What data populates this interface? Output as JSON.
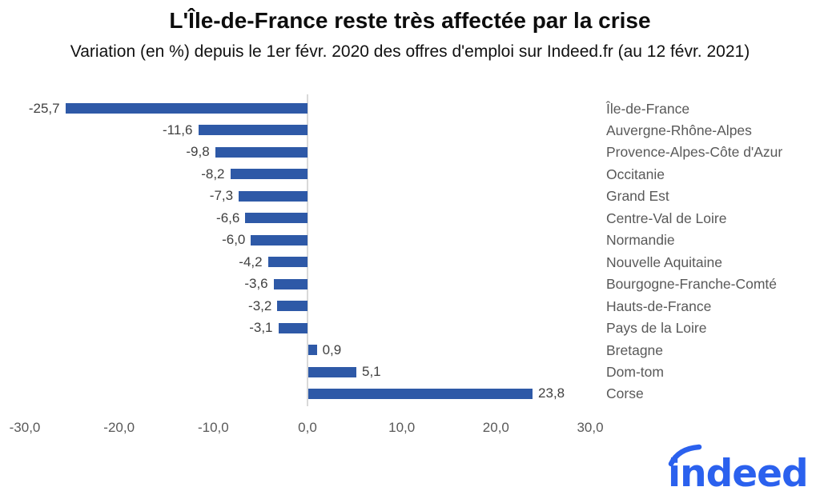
{
  "header": {
    "title": "L'Île-de-France reste très affectée par la crise",
    "subtitle": "Variation (en %) depuis le 1er févr. 2020 des offres d'emploi sur Indeed.fr (au 12 févr. 2021)"
  },
  "chart_data": {
    "type": "bar",
    "orientation": "horizontal",
    "title": "L'Île-de-France reste très affectée par la crise",
    "subtitle": "Variation (en %) depuis le 1er févr. 2020 des offres d'emploi sur Indeed.fr (au 12 févr. 2021)",
    "categories": [
      "Île-de-France",
      "Auvergne-Rhône-Alpes",
      "Provence-Alpes-Côte d'Azur",
      "Occitanie",
      "Grand Est",
      "Centre-Val de Loire",
      "Normandie",
      "Nouvelle Aquitaine",
      "Bourgogne-Franche-Comté",
      "Hauts-de-France",
      "Pays de la Loire",
      "Bretagne",
      "Dom-tom",
      "Corse"
    ],
    "values": [
      -25.7,
      -11.6,
      -9.8,
      -8.2,
      -7.3,
      -6.6,
      -6.0,
      -4.2,
      -3.6,
      -3.2,
      -3.1,
      0.9,
      5.1,
      23.8
    ],
    "value_labels": [
      "-25,7",
      "-11,6",
      "-9,8",
      "-8,2",
      "-7,3",
      "-6,6",
      "-6,0",
      "-4,2",
      "-3,6",
      "-3,2",
      "-3,1",
      "0,9",
      "5,1",
      "23,8"
    ],
    "xlabel": "",
    "ylabel": "",
    "xlim": [
      -30,
      30
    ],
    "x_ticks": [
      -30,
      -20,
      -10,
      0,
      10,
      20,
      30
    ],
    "x_tick_labels": [
      "-30,0",
      "-20,0",
      "-10,0",
      "0,0",
      "10,0",
      "20,0",
      "30,0"
    ],
    "grid": false,
    "legend": "none",
    "colors": {
      "bar": "#2e59a7",
      "axis_line": "#d9d9d9",
      "value_label": "#404040",
      "category_label": "#595959",
      "tick_label": "#595959"
    }
  },
  "branding": {
    "logo_text": "indeed",
    "logo_color": "#2b61ee"
  }
}
